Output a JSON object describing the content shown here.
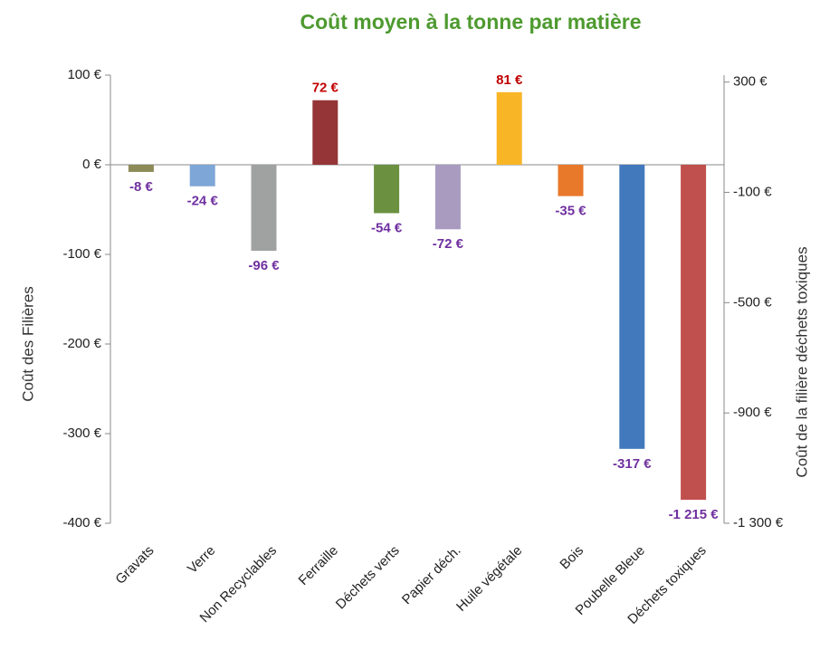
{
  "chart_data": {
    "type": "bar",
    "title": "Coût moyen à la tonne par matière",
    "title_color": "#4e9a2f",
    "ylabel": "Coût des Filières",
    "y2label": "Coût de la filière déchets  toxiques",
    "categories": [
      "Gravats",
      "Verre",
      "Non Recyclables",
      "Ferraille",
      "Déchets verts",
      "Papier déch.",
      "Huile végétale",
      "Bois",
      "Poubelle Bleue",
      "Déchets  toxiques"
    ],
    "series": [
      {
        "values": [
          -8,
          -24,
          -96,
          72,
          -54,
          -72,
          81,
          -35,
          -317,
          null
        ],
        "value_labels": [
          "-8 €",
          "-24 €",
          "-96 €",
          "72 €",
          "-54 €",
          "-72 €",
          "81 €",
          "-35 €",
          "-317 €",
          null
        ],
        "colors": [
          "#8c8b57",
          "#7ea6d6",
          "#a0a2a1",
          "#953537",
          "#6b9040",
          "#a99bc0",
          "#f8b526",
          "#e8792a",
          "#4279bd",
          null
        ]
      },
      {
        "axis": "y2",
        "values": [
          null,
          null,
          null,
          null,
          null,
          null,
          null,
          null,
          null,
          -1215
        ],
        "value_labels": [
          null,
          null,
          null,
          null,
          null,
          null,
          null,
          null,
          null,
          "-1 215 €"
        ],
        "colors": [
          null,
          null,
          null,
          null,
          null,
          null,
          null,
          null,
          null,
          "#c0504d"
        ]
      }
    ],
    "label_color_negative": "#7030a0",
    "label_color_positive": "#c00000",
    "ylim": [
      -400,
      100
    ],
    "yticks": [
      {
        "value": -400,
        "label": "-400 €"
      },
      {
        "value": -300,
        "label": "-300 €"
      },
      {
        "value": -200,
        "label": "-200 €"
      },
      {
        "value": -100,
        "label": "-100 €"
      },
      {
        "value": 0,
        "label": "0 €"
      },
      {
        "value": 100,
        "label": "100 €"
      }
    ],
    "y2lim": [
      -1300,
      325
    ],
    "y2ticks": [
      {
        "value": -1300,
        "label": "-1 300 €"
      },
      {
        "value": -900,
        "label": "-900 €"
      },
      {
        "value": -500,
        "label": "-500 €"
      },
      {
        "value": -100,
        "label": "-100 €"
      },
      {
        "value": 300,
        "label": "300 €"
      }
    ],
    "grid": false
  }
}
